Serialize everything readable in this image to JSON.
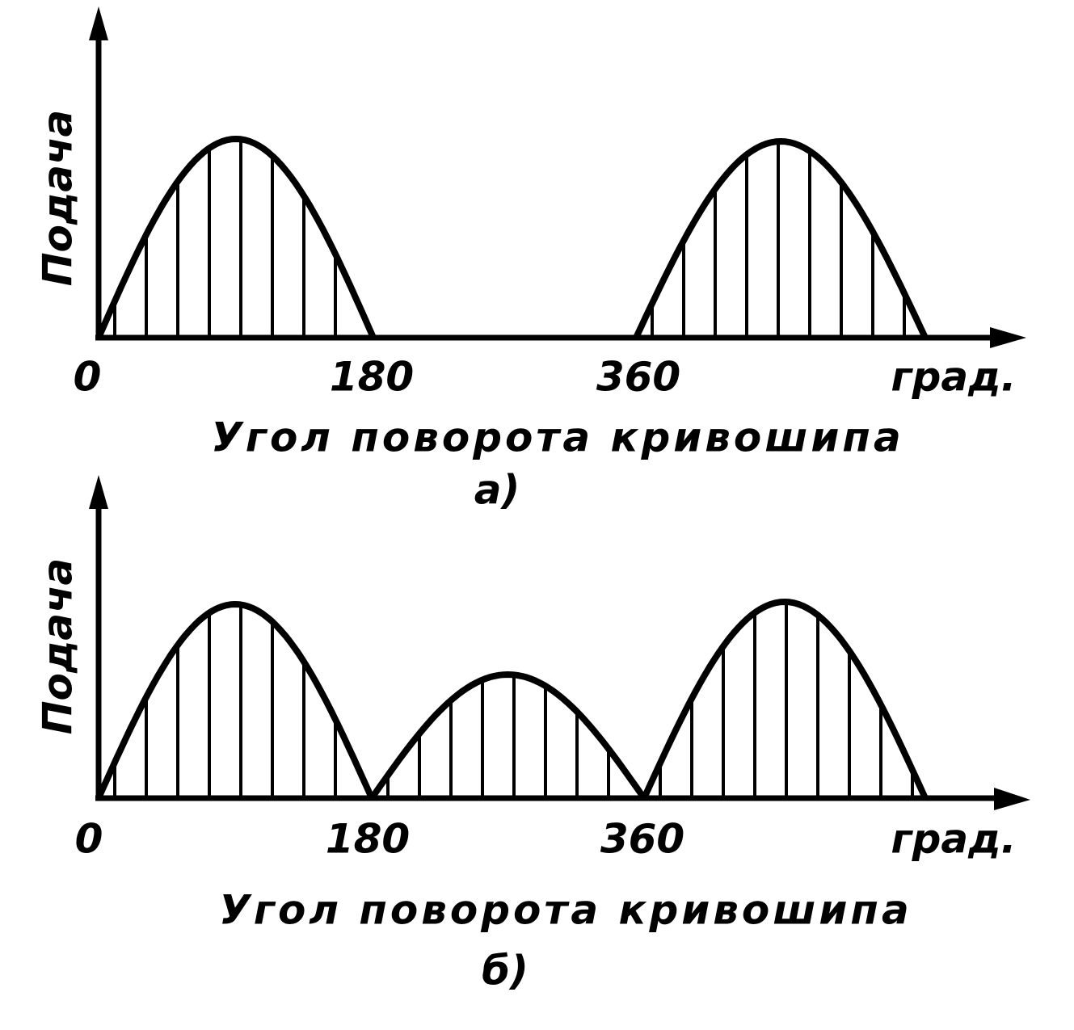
{
  "panels": [
    {
      "y_label": "Подача",
      "x_ticks": [
        "0",
        "180",
        "360"
      ],
      "x_unit": "град.",
      "x_label": "Угол поворота кривошипа",
      "caption": "а)"
    },
    {
      "y_label": "Подача",
      "x_ticks": [
        "0",
        "180",
        "360"
      ],
      "x_unit": "град.",
      "x_label": "Угол поворота кривошипа",
      "caption": "б)"
    }
  ]
}
